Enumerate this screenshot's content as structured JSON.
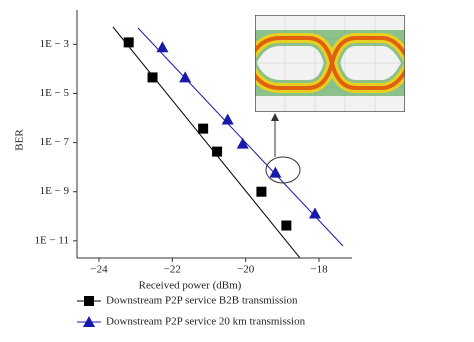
{
  "chart_data": {
    "type": "scatter",
    "x_label": "Received power (dBm)",
    "y_label": "BER",
    "yscale": "log",
    "xlim": [
      -24.6,
      -17.1
    ],
    "ylim": [
      2e-12,
      0.025
    ],
    "xticks": [
      {
        "value": -24,
        "label": "−24"
      },
      {
        "value": -22,
        "label": "−22"
      },
      {
        "value": -20,
        "label": "−20"
      },
      {
        "value": -18,
        "label": "−18"
      }
    ],
    "yticks": [
      {
        "value": 0.001,
        "label": "1E − 3"
      },
      {
        "value": 1e-05,
        "label": "1E − 5"
      },
      {
        "value": 1e-07,
        "label": "1E − 7"
      },
      {
        "value": 1e-09,
        "label": "1E − 9"
      },
      {
        "value": 1e-11,
        "label": "1E − 11"
      }
    ],
    "series": [
      {
        "name": "Downstream P2P service B2B transmission",
        "color": "#000000",
        "marker": "square",
        "x": [
          -23.19,
          -22.54,
          -21.16,
          -20.78,
          -19.57,
          -18.89
        ],
        "values": [
          0.0012,
          4.5e-05,
          3.7e-07,
          4.3e-08,
          1e-09,
          4.2e-11
        ]
      },
      {
        "name": "Downstream P2P service 20 km transmission",
        "color": "#1a1aa8",
        "marker": "triangle",
        "x": [
          -22.27,
          -21.65,
          -20.49,
          -20.08,
          -19.19,
          -18.11
        ],
        "values": [
          0.00076,
          4.5e-05,
          8.7e-07,
          9.1e-08,
          6e-09,
          1.3e-10
        ]
      }
    ]
  }
}
